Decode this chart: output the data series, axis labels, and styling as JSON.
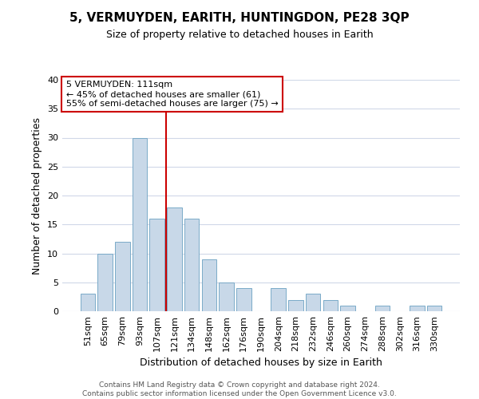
{
  "title": "5, VERMUYDEN, EARITH, HUNTINGDON, PE28 3QP",
  "subtitle": "Size of property relative to detached houses in Earith",
  "xlabel": "Distribution of detached houses by size in Earith",
  "ylabel": "Number of detached properties",
  "footer_line1": "Contains HM Land Registry data © Crown copyright and database right 2024.",
  "footer_line2": "Contains public sector information licensed under the Open Government Licence v3.0.",
  "bar_labels": [
    "51sqm",
    "65sqm",
    "79sqm",
    "93sqm",
    "107sqm",
    "121sqm",
    "134sqm",
    "148sqm",
    "162sqm",
    "176sqm",
    "190sqm",
    "204sqm",
    "218sqm",
    "232sqm",
    "246sqm",
    "260sqm",
    "274sqm",
    "288sqm",
    "302sqm",
    "316sqm",
    "330sqm"
  ],
  "bar_values": [
    3,
    10,
    12,
    30,
    16,
    18,
    16,
    9,
    5,
    4,
    0,
    4,
    2,
    3,
    2,
    1,
    0,
    1,
    0,
    1,
    1
  ],
  "bar_color": "#c8d8e8",
  "bar_edgecolor": "#7aaac8",
  "vline_x": 4.5,
  "vline_color": "#cc0000",
  "annotation_title": "5 VERMUYDEN: 111sqm",
  "annotation_line2": "← 45% of detached houses are smaller (61)",
  "annotation_line3": "55% of semi-detached houses are larger (75) →",
  "annotation_box_edgecolor": "#cc0000",
  "ylim": [
    0,
    40
  ],
  "yticks": [
    0,
    5,
    10,
    15,
    20,
    25,
    30,
    35,
    40
  ],
  "background_color": "#ffffff",
  "grid_color": "#d0d8e8",
  "title_fontsize": 11,
  "subtitle_fontsize": 9,
  "ylabel_fontsize": 9,
  "xlabel_fontsize": 9,
  "tick_fontsize": 8,
  "annotation_fontsize": 8,
  "footer_fontsize": 6.5
}
